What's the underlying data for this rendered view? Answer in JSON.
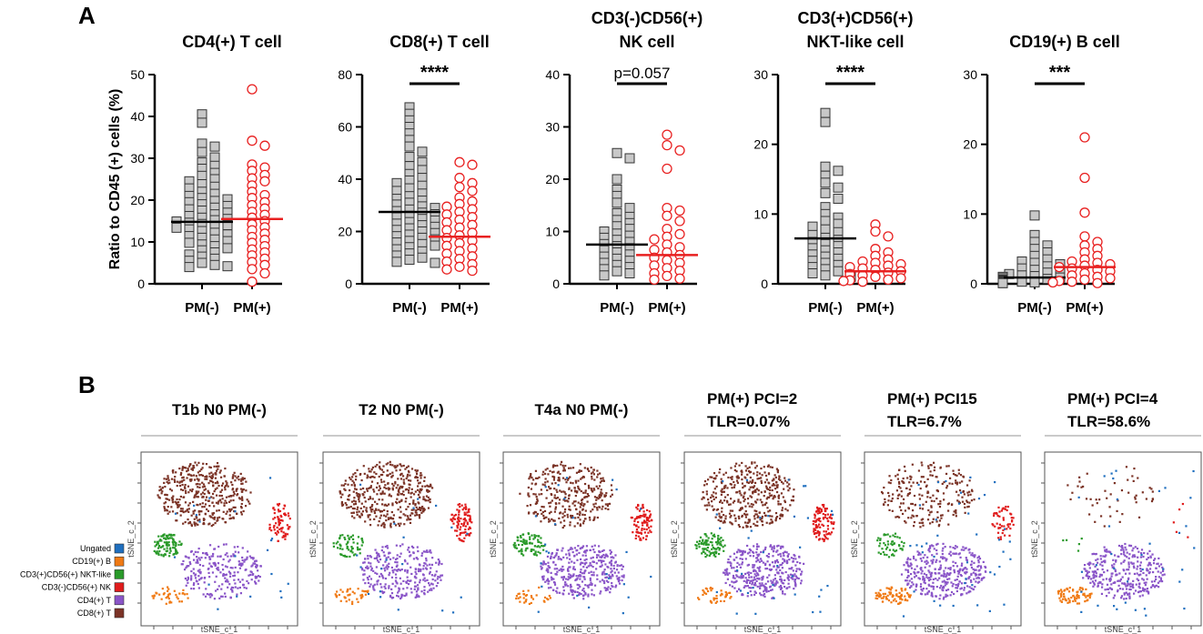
{
  "panel_labels": {
    "a": "A",
    "b": "B"
  },
  "colors": {
    "pm_neg_fill": "#c8c8c8",
    "pm_neg_stroke": "#333333",
    "pm_pos": "#e82020",
    "Ungated": "#1f6fbf",
    "CD19(+) B": "#f07a14",
    "CD3(+)CD56(+) NKT-like": "#2a9a2a",
    "CD3(-)CD56(+) NK": "#e01c1c",
    "CD4(+) T": "#8a55c8",
    "CD8(+) T": "#7b3326"
  },
  "chart_data": [
    {
      "type": "scatter",
      "title": [
        "CD4(+) T cell"
      ],
      "ylabel": "Ratio to CD45 (+) cells (%)",
      "categories": [
        "PM(-)",
        "PM(+)"
      ],
      "ylim": [
        0,
        50
      ],
      "yticks": [
        0,
        10,
        20,
        30,
        40,
        50
      ],
      "medians": [
        14.8,
        15.5
      ],
      "significance": null,
      "series": [
        {
          "name": "PM(-)",
          "values": [
            40.5,
            38.5,
            33.5,
            32.8,
            31.5,
            30.2,
            29.0,
            28.2,
            27.5,
            26.5,
            25.8,
            25.0,
            24.5,
            23.8,
            23.2,
            22.8,
            22.0,
            21.5,
            21.0,
            20.5,
            20.2,
            19.8,
            19.5,
            19.0,
            18.6,
            18.2,
            17.8,
            17.5,
            17.0,
            16.6,
            16.2,
            15.8,
            15.5,
            15.2,
            14.9,
            14.6,
            14.3,
            14.0,
            13.7,
            13.4,
            13.0,
            12.6,
            12.2,
            11.8,
            11.4,
            11.0,
            10.6,
            10.2,
            9.8,
            9.4,
            9.0,
            8.5,
            8.0,
            7.5,
            7.0,
            6.5,
            6.0,
            5.5,
            5.0,
            4.5,
            4.2,
            4.0
          ]
        },
        {
          "name": "PM(+)",
          "values": [
            46.5,
            34.2,
            33.0,
            28.5,
            27.8,
            27.0,
            26.0,
            25.2,
            24.5,
            23.5,
            22.0,
            21.2,
            20.5,
            19.5,
            18.8,
            18.0,
            17.2,
            16.5,
            15.8,
            15.0,
            14.2,
            13.5,
            12.8,
            12.0,
            11.2,
            10.5,
            9.8,
            9.0,
            8.2,
            7.5,
            6.8,
            6.0,
            5.2,
            4.5,
            3.5,
            2.5,
            0.5
          ]
        }
      ]
    },
    {
      "type": "scatter",
      "title": [
        "CD8(+) T cell"
      ],
      "categories": [
        "PM(-)",
        "PM(+)"
      ],
      "ylim": [
        0,
        80
      ],
      "yticks": [
        0,
        20,
        40,
        60,
        80
      ],
      "medians": [
        27.5,
        18.0
      ],
      "significance": "****",
      "series": [
        {
          "name": "PM(-)",
          "values": [
            67.5,
            65.0,
            62.5,
            60.0,
            57.5,
            55.0,
            52.5,
            50.5,
            48.5,
            46.5,
            45.0,
            43.5,
            42.0,
            40.5,
            39.5,
            38.5,
            37.5,
            36.5,
            35.5,
            34.5,
            33.5,
            32.5,
            31.8,
            31.0,
            30.3,
            29.6,
            29.0,
            28.4,
            27.8,
            27.2,
            26.6,
            26.0,
            25.4,
            24.8,
            24.2,
            23.6,
            23.0,
            22.4,
            21.8,
            21.2,
            20.6,
            20.0,
            19.4,
            18.8,
            18.2,
            17.6,
            17.0,
            16.4,
            15.8,
            15.2,
            14.6,
            14.0,
            13.2,
            12.4,
            11.6,
            10.8,
            10.0,
            9.2,
            8.4,
            8.0
          ]
        },
        {
          "name": "PM(+)",
          "values": [
            46.5,
            45.5,
            40.5,
            38.5,
            37.0,
            35.5,
            33.0,
            31.5,
            30.5,
            29.5,
            28.5,
            27.5,
            26.5,
            25.5,
            24.5,
            23.5,
            22.5,
            21.5,
            20.5,
            19.5,
            18.5,
            17.5,
            16.5,
            15.5,
            14.5,
            13.5,
            12.5,
            11.5,
            10.5,
            9.5,
            8.5,
            7.5,
            6.5,
            5.5,
            5.0
          ]
        }
      ]
    },
    {
      "type": "scatter",
      "title": [
        "CD3(-)CD56(+)",
        "NK cell"
      ],
      "categories": [
        "PM(-)",
        "PM(+)"
      ],
      "ylim": [
        0,
        40
      ],
      "yticks": [
        0,
        10,
        20,
        30,
        40
      ],
      "medians": [
        7.5,
        5.5
      ],
      "significance": "p=0.057",
      "series": [
        {
          "name": "PM(-)",
          "values": [
            25.0,
            24.0,
            20.0,
            18.0,
            16.8,
            15.5,
            14.5,
            13.5,
            12.8,
            12.2,
            11.6,
            11.0,
            10.5,
            10.0,
            9.6,
            9.2,
            8.8,
            8.4,
            8.0,
            7.6,
            7.2,
            6.8,
            6.4,
            6.0,
            5.6,
            5.2,
            4.8,
            4.4,
            4.0,
            3.6,
            3.2,
            2.8,
            2.4,
            2.0,
            1.6
          ]
        },
        {
          "name": "PM(+)",
          "values": [
            28.5,
            26.5,
            25.5,
            22.0,
            14.5,
            14.0,
            13.0,
            12.0,
            10.5,
            9.5,
            9.0,
            8.5,
            7.5,
            7.0,
            6.5,
            6.0,
            5.5,
            5.0,
            4.5,
            4.0,
            3.5,
            3.0,
            2.5,
            2.0,
            1.5,
            1.0,
            0.8
          ]
        }
      ]
    },
    {
      "type": "scatter",
      "title": [
        "CD3(+)CD56(+)",
        "NKT-like cell"
      ],
      "categories": [
        "PM(-)",
        "PM(+)"
      ],
      "ylim": [
        0,
        30
      ],
      "yticks": [
        0,
        10,
        20,
        30
      ],
      "medians": [
        6.5,
        1.8
      ],
      "significance": "****",
      "series": [
        {
          "name": "PM(-)",
          "values": [
            24.5,
            23.2,
            16.8,
            16.2,
            15.5,
            14.5,
            13.8,
            13.0,
            12.2,
            11.0,
            10.0,
            9.5,
            9.0,
            8.6,
            8.2,
            7.8,
            7.4,
            7.0,
            6.6,
            6.3,
            6.0,
            5.7,
            5.4,
            5.1,
            4.8,
            4.5,
            4.2,
            3.9,
            3.6,
            3.3,
            3.0,
            2.7,
            2.4,
            2.1,
            1.8,
            1.5,
            1.2,
            1.0
          ]
        },
        {
          "name": "PM(+)",
          "values": [
            8.5,
            7.5,
            6.8,
            5.0,
            4.5,
            4.0,
            3.5,
            3.2,
            3.0,
            2.8,
            2.6,
            2.4,
            2.2,
            2.0,
            1.8,
            1.6,
            1.4,
            1.2,
            1.0,
            0.8,
            0.6,
            0.5,
            0.4,
            0.3
          ]
        }
      ]
    },
    {
      "type": "scatter",
      "title": [
        "CD19(+) B cell"
      ],
      "categories": [
        "PM(-)",
        "PM(+)"
      ],
      "ylim": [
        0,
        30
      ],
      "yticks": [
        0,
        10,
        20,
        30
      ],
      "medians": [
        0.9,
        2.4
      ],
      "significance": "***",
      "series": [
        {
          "name": "PM(-)",
          "values": [
            9.8,
            7.0,
            6.0,
            5.5,
            5.0,
            4.5,
            4.0,
            3.5,
            3.2,
            3.0,
            2.8,
            2.5,
            2.2,
            2.0,
            1.8,
            1.6,
            1.4,
            1.2,
            1.1,
            1.0,
            0.9,
            0.8,
            0.7,
            0.6,
            0.5,
            0.4,
            0.3,
            0.3,
            0.2,
            0.2,
            0.1,
            0.1
          ]
        },
        {
          "name": "PM(+)",
          "values": [
            21.0,
            15.2,
            10.2,
            6.8,
            6.0,
            5.5,
            5.0,
            4.5,
            4.0,
            3.5,
            3.2,
            3.0,
            2.8,
            2.6,
            2.4,
            2.2,
            2.0,
            1.8,
            1.5,
            1.2,
            1.0,
            0.8,
            0.6,
            0.4,
            0.3,
            0.2,
            0.1
          ]
        }
      ]
    }
  ],
  "tsne": {
    "xlabel": "tSNE_c_1",
    "ylabel": "tSNE_c_2",
    "legend": [
      "Ungated",
      "CD19(+) B",
      "CD3(+)CD56(+) NKT-like",
      "CD3(-)CD56(+) NK",
      "CD4(+) T",
      "CD8(+) T"
    ],
    "panels": [
      {
        "title": [
          "T1b N0  PM(-)",
          ""
        ],
        "abundance": {
          "CD8(+) T": 1.0,
          "CD4(+) T": 0.7,
          "CD3(+)CD56(+) NKT-like": 1.0,
          "CD3(-)CD56(+) NK": 0.7,
          "CD19(+) B": 0.5,
          "Ungated": 0.4
        }
      },
      {
        "title": [
          "T2 N0  PM(-)",
          ""
        ],
        "abundance": {
          "CD8(+) T": 1.0,
          "CD4(+) T": 0.8,
          "CD3(+)CD56(+) NKT-like": 0.6,
          "CD3(-)CD56(+) NK": 0.9,
          "CD19(+) B": 0.5,
          "Ungated": 0.4
        }
      },
      {
        "title": [
          "T4a N0  PM(-)",
          ""
        ],
        "abundance": {
          "CD8(+) T": 0.8,
          "CD4(+) T": 1.0,
          "CD3(+)CD56(+) NKT-like": 0.8,
          "CD3(-)CD56(+) NK": 0.9,
          "CD19(+) B": 0.4,
          "Ungated": 0.5
        }
      },
      {
        "title": [
          "PM(+)  PCI=2",
          "TLR=0.07%"
        ],
        "abundance": {
          "CD8(+) T": 0.9,
          "CD4(+) T": 1.0,
          "CD3(+)CD56(+) NKT-like": 0.9,
          "CD3(-)CD56(+) NK": 1.0,
          "CD19(+) B": 0.5,
          "Ungated": 0.7
        }
      },
      {
        "title": [
          "PM(+)  PCI15",
          "TLR=6.7%"
        ],
        "abundance": {
          "CD8(+) T": 0.55,
          "CD4(+) T": 1.0,
          "CD3(+)CD56(+) NKT-like": 0.5,
          "CD3(-)CD56(+) NK": 0.5,
          "CD19(+) B": 1.0,
          "Ungated": 0.8
        }
      },
      {
        "title": [
          "PM(+)  PCI=4",
          "TLR=58.6%"
        ],
        "abundance": {
          "CD8(+) T": 0.12,
          "CD4(+) T": 0.9,
          "CD3(+)CD56(+) NKT-like": 0.05,
          "CD3(-)CD56(+) NK": 0.05,
          "CD19(+) B": 0.9,
          "Ungated": 0.7
        }
      }
    ]
  }
}
